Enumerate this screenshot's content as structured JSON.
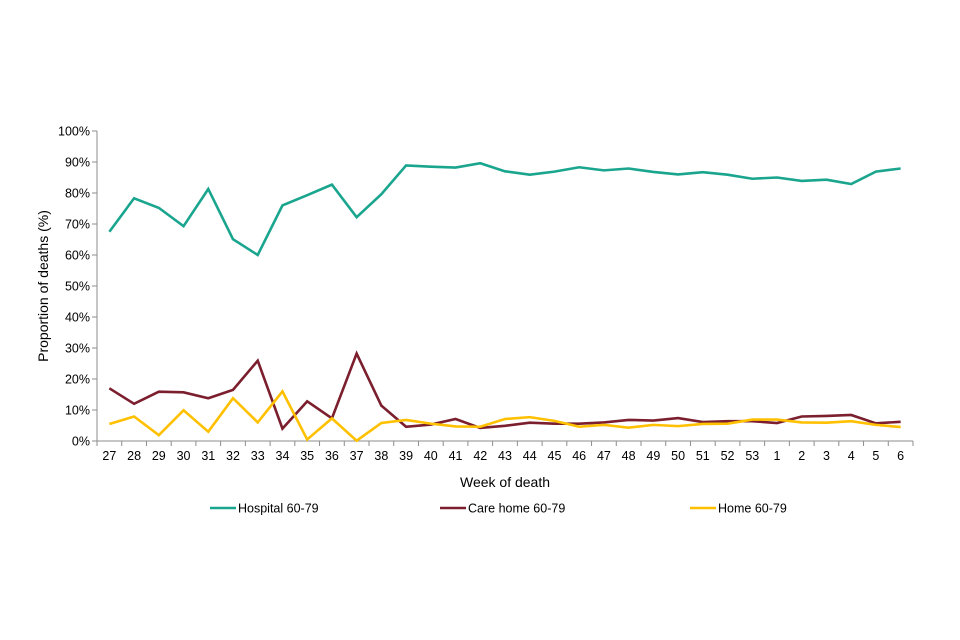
{
  "chart_data": {
    "type": "line",
    "title": "",
    "xlabel": "Week of death",
    "ylabel": "Proportion of deaths (%)",
    "ylim": [
      0,
      100
    ],
    "y_ticks": [
      0,
      10,
      20,
      30,
      40,
      50,
      60,
      70,
      80,
      90,
      100
    ],
    "y_tick_suffix": "%",
    "grid": false,
    "legend_position": "bottom",
    "categories": [
      "27",
      "28",
      "29",
      "30",
      "31",
      "32",
      "33",
      "34",
      "35",
      "36",
      "37",
      "38",
      "39",
      "40",
      "41",
      "42",
      "43",
      "44",
      "45",
      "46",
      "47",
      "48",
      "49",
      "50",
      "51",
      "52",
      "53",
      "1",
      "2",
      "3",
      "4",
      "5",
      "6"
    ],
    "series": [
      {
        "name": "Hospital 60-79",
        "color": "#1aa58e",
        "values": [
          67.5,
          78.3,
          75.2,
          69.3,
          81.3,
          65.1,
          60.0,
          76.0,
          79.3,
          82.7,
          72.2,
          79.6,
          88.9,
          88.5,
          88.2,
          89.6,
          87.0,
          85.9,
          86.9,
          88.3,
          87.3,
          87.9,
          86.8,
          86.0,
          86.7,
          85.9,
          84.6,
          85.0,
          83.9,
          84.3,
          82.9,
          86.9,
          87.9
        ]
      },
      {
        "name": "Care home 60-79",
        "color": "#7b1f2e",
        "values": [
          17.0,
          12.0,
          15.9,
          15.7,
          13.8,
          16.5,
          25.9,
          4.0,
          12.8,
          7.3,
          28.2,
          11.4,
          4.6,
          5.3,
          7.1,
          4.2,
          4.9,
          5.9,
          5.6,
          5.6,
          6.0,
          6.8,
          6.6,
          7.4,
          6.1,
          6.4,
          6.4,
          5.8,
          7.9,
          8.1,
          8.4,
          5.7,
          6.2
        ]
      },
      {
        "name": "Home 60-79",
        "color": "#ffc000",
        "values": [
          5.5,
          7.9,
          1.9,
          9.9,
          3.0,
          13.8,
          6.0,
          16.0,
          0.5,
          7.3,
          0.1,
          5.8,
          6.8,
          5.6,
          4.7,
          4.6,
          7.1,
          7.7,
          6.5,
          4.6,
          5.2,
          4.3,
          5.2,
          4.8,
          5.5,
          5.6,
          6.9,
          6.9,
          6.0,
          5.9,
          6.4,
          5.2,
          4.5
        ]
      }
    ]
  }
}
